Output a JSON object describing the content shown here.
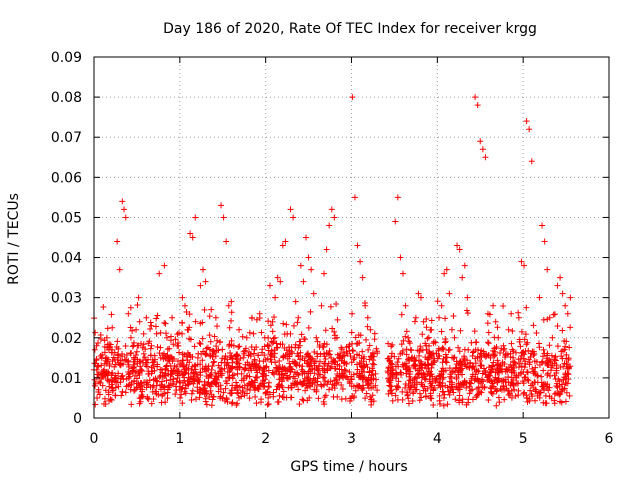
{
  "chart_data": {
    "type": "scatter",
    "title": "Day 186 of 2020, Rate Of TEC Index for receiver krgg",
    "xlabel": "GPS time / hours",
    "ylabel": "ROTI / TECUs",
    "xlim": [
      0,
      6
    ],
    "ylim": [
      0,
      0.09
    ],
    "xticks": [
      0,
      1,
      2,
      3,
      4,
      5,
      6
    ],
    "yticks": [
      0,
      0.01,
      0.02,
      0.03,
      0.04,
      0.05,
      0.06,
      0.07,
      0.08,
      0.09
    ],
    "ytick_labels": [
      "0",
      "0.01",
      "0.02",
      "0.03",
      "0.04",
      "0.05",
      "0.06",
      "0.07",
      "0.08",
      "0.09"
    ],
    "grid": true,
    "marker": "+",
    "color": "#ff0000",
    "series": [
      {
        "name": "ROTI",
        "x": [
          0.0,
          0.03,
          0.06,
          0.09,
          0.12,
          0.15,
          0.18,
          0.21,
          0.24,
          0.27,
          0.3,
          0.33,
          0.35,
          0.37,
          0.4,
          0.43,
          0.46,
          0.49,
          0.52,
          0.55,
          0.58,
          0.61,
          0.64,
          0.67,
          0.7,
          0.73,
          0.76,
          0.79,
          0.82,
          0.85,
          0.88,
          0.91,
          0.94,
          0.97,
          1.0,
          1.03,
          1.06,
          1.09,
          1.12,
          1.15,
          1.18,
          1.21,
          1.24,
          1.27,
          1.3,
          1.33,
          1.36,
          1.39,
          1.42,
          1.45,
          1.48,
          1.51,
          1.54,
          1.57,
          1.6,
          1.63,
          1.66,
          1.69,
          1.72,
          1.75,
          1.78,
          1.81,
          1.84,
          1.87,
          1.9,
          1.93,
          1.96,
          1.99,
          2.02,
          2.05,
          2.08,
          2.11,
          2.14,
          2.17,
          2.2,
          2.23,
          2.26,
          2.29,
          2.32,
          2.35,
          2.38,
          2.41,
          2.44,
          2.47,
          2.5,
          2.53,
          2.56,
          2.59,
          2.62,
          2.65,
          2.68,
          2.71,
          2.74,
          2.77,
          2.8,
          2.83,
          2.86,
          2.89,
          2.92,
          2.95,
          2.98,
          3.01,
          3.04,
          3.07,
          3.1,
          3.13,
          3.16,
          3.19,
          3.22,
          3.25,
          3.28,
          3.45,
          3.48,
          3.51,
          3.54,
          3.57,
          3.6,
          3.63,
          3.66,
          3.69,
          3.72,
          3.75,
          3.78,
          3.81,
          3.84,
          3.87,
          3.9,
          3.93,
          3.96,
          3.99,
          4.02,
          4.05,
          4.08,
          4.11,
          4.14,
          4.17,
          4.2,
          4.23,
          4.26,
          4.29,
          4.32,
          4.35,
          4.44,
          4.47,
          4.5,
          4.53,
          4.56,
          4.59,
          4.62,
          4.65,
          4.68,
          4.71,
          4.74,
          4.77,
          4.8,
          4.83,
          4.86,
          4.89,
          4.92,
          4.95,
          4.98,
          5.01,
          5.04,
          5.07,
          5.1,
          5.13,
          5.16,
          5.19,
          5.22,
          5.25,
          5.28,
          5.31,
          5.34,
          5.37,
          5.4,
          5.43,
          5.46,
          5.49,
          5.52,
          5.55
        ],
        "y": [
          0.012,
          0.018,
          0.009,
          0.015,
          0.011,
          0.02,
          0.013,
          0.017,
          0.01,
          0.044,
          0.037,
          0.054,
          0.052,
          0.05,
          0.026,
          0.02,
          0.014,
          0.022,
          0.03,
          0.012,
          0.016,
          0.025,
          0.011,
          0.018,
          0.014,
          0.021,
          0.036,
          0.012,
          0.038,
          0.02,
          0.015,
          0.025,
          0.013,
          0.018,
          0.011,
          0.03,
          0.028,
          0.022,
          0.046,
          0.045,
          0.05,
          0.015,
          0.033,
          0.037,
          0.034,
          0.012,
          0.019,
          0.016,
          0.025,
          0.011,
          0.053,
          0.05,
          0.044,
          0.028,
          0.029,
          0.018,
          0.014,
          0.022,
          0.011,
          0.016,
          0.02,
          0.013,
          0.025,
          0.017,
          0.01,
          0.026,
          0.012,
          0.02,
          0.018,
          0.033,
          0.024,
          0.03,
          0.035,
          0.034,
          0.043,
          0.044,
          0.016,
          0.052,
          0.05,
          0.029,
          0.025,
          0.038,
          0.034,
          0.045,
          0.04,
          0.037,
          0.031,
          0.02,
          0.013,
          0.028,
          0.036,
          0.042,
          0.048,
          0.052,
          0.05,
          0.02,
          0.015,
          0.011,
          0.012,
          0.016,
          0.009,
          0.08,
          0.055,
          0.043,
          0.039,
          0.035,
          0.028,
          0.025,
          0.022,
          0.016,
          0.011,
          0.014,
          0.01,
          0.049,
          0.055,
          0.04,
          0.036,
          0.028,
          0.02,
          0.017,
          0.013,
          0.025,
          0.031,
          0.03,
          0.024,
          0.018,
          0.015,
          0.022,
          0.019,
          0.016,
          0.025,
          0.028,
          0.036,
          0.037,
          0.031,
          0.022,
          0.02,
          0.043,
          0.042,
          0.035,
          0.038,
          0.03,
          0.08,
          0.078,
          0.069,
          0.067,
          0.065,
          0.026,
          0.015,
          0.028,
          0.024,
          0.02,
          0.013,
          0.018,
          0.016,
          0.022,
          0.026,
          0.013,
          0.01,
          0.025,
          0.039,
          0.038,
          0.074,
          0.072,
          0.064,
          0.016,
          0.014,
          0.03,
          0.048,
          0.044,
          0.037,
          0.025,
          0.02,
          0.015,
          0.033,
          0.035,
          0.031,
          0.028,
          0.026,
          0.03
        ],
        "density_note": "dense cloud of additional points mostly between 0.004 and 0.02 across 0 to 5.55 hours"
      }
    ]
  }
}
